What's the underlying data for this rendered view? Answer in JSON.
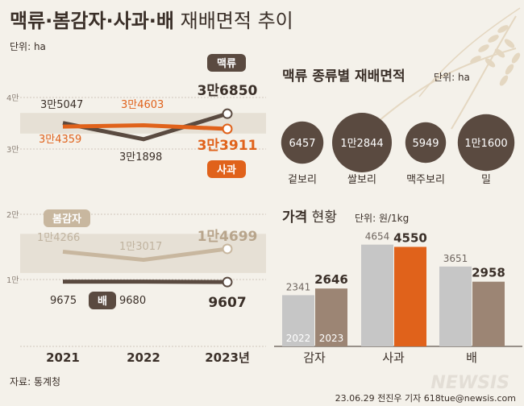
{
  "header": {
    "title_bold": "맥류·봄감자·사과·배",
    "title_rest": " 재배면적 추이",
    "unit": "단위: ha"
  },
  "footer": {
    "source": "자료: 통계청",
    "credit": "23.06.29 전진우 기자 618tue@newsis.com",
    "watermark": "NEWSIS"
  },
  "colors": {
    "background": "#f4f1ea",
    "dark_brown": "#5a4a40",
    "orange": "#e0621b",
    "tan": "#c8b79f",
    "band": "#e6e0d5",
    "gray_bar": "#c6c6c6",
    "brown_bar": "#9c8574"
  },
  "chart_data": [
    {
      "type": "line",
      "x": [
        "2021",
        "2022",
        "2023년"
      ],
      "y_ticks": [
        "4만",
        "3만"
      ],
      "series": [
        {
          "name": "맥류",
          "values": [
            35047,
            31898,
            36850
          ],
          "labels": [
            "3만5047",
            "3만1898",
            "3만6850"
          ]
        },
        {
          "name": "사과",
          "values": [
            34359,
            34603,
            33911
          ],
          "labels": [
            "3만4359",
            "3만4603",
            "3만3911"
          ]
        }
      ]
    },
    {
      "type": "line",
      "x": [
        "2021",
        "2022",
        "2023년"
      ],
      "y_ticks": [
        "2만",
        "1만"
      ],
      "series": [
        {
          "name": "봄감자",
          "values": [
            14266,
            13017,
            14699
          ],
          "labels": [
            "1만4266",
            "1만3017",
            "1만4699"
          ]
        },
        {
          "name": "배",
          "values": [
            9675,
            9680,
            9607
          ],
          "labels": [
            "9675",
            "9680",
            "9607"
          ]
        }
      ]
    },
    {
      "type": "bubble",
      "title": "맥류 종류별 재배면적",
      "unit": "단위: ha",
      "items": [
        {
          "name": "겉보리",
          "value": 6457,
          "label": "6457"
        },
        {
          "name": "쌀보리",
          "value": 12844,
          "label": "1만2844"
        },
        {
          "name": "맥주보리",
          "value": 5949,
          "label": "5949"
        },
        {
          "name": "밀",
          "value": 11600,
          "label": "1만1600"
        }
      ]
    },
    {
      "type": "bar",
      "title_bold": "가격",
      "title_rest": " 현황",
      "unit": "단위: 원/1kg",
      "categories": [
        "감자",
        "사과",
        "배"
      ],
      "series": [
        {
          "name": "2022",
          "values": [
            2341,
            4654,
            3651
          ]
        },
        {
          "name": "2023",
          "values": [
            2646,
            4550,
            2958
          ]
        }
      ]
    }
  ]
}
